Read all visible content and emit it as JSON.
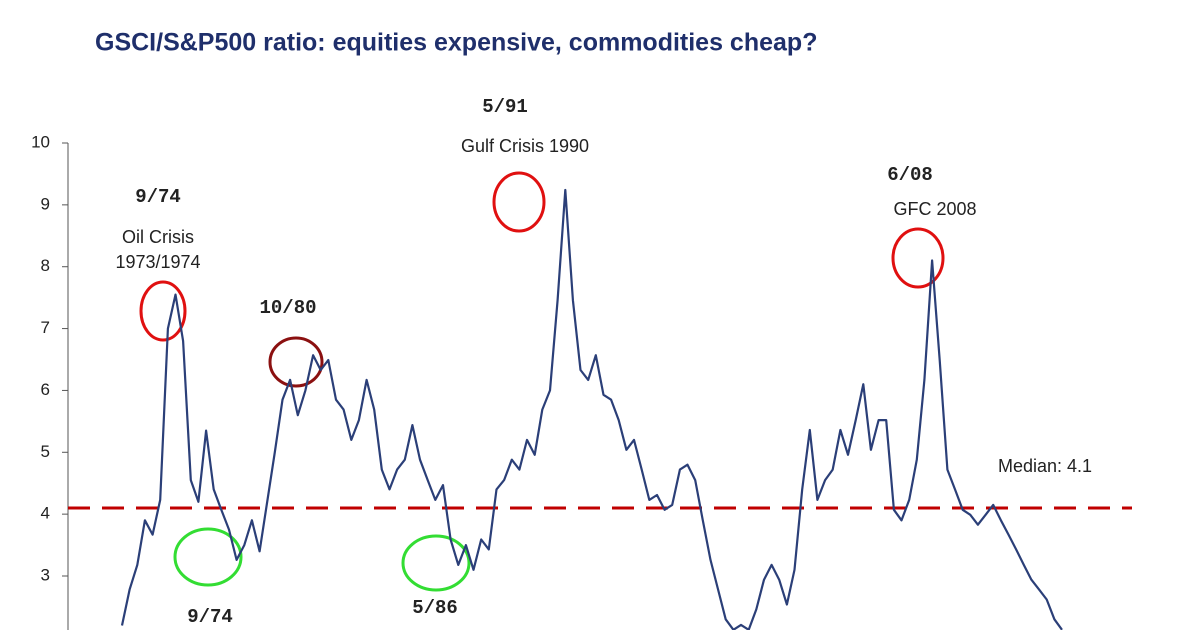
{
  "chart_data": {
    "type": "line",
    "title": "GSCI/S&P500 ratio: equities expensive, commodities cheap?",
    "series": [
      {
        "name": "GSCI/S&P500 ratio",
        "color": "#2b3f78",
        "values": [
          2.2,
          2.78,
          3.18,
          3.9,
          3.67,
          4.23,
          7.0,
          7.55,
          6.8,
          4.55,
          4.2,
          5.35,
          4.4,
          4.07,
          3.75,
          3.26,
          3.5,
          3.9,
          3.4,
          4.2,
          5.0,
          5.85,
          6.17,
          5.6,
          6.0,
          6.57,
          6.33,
          6.49,
          5.85,
          5.69,
          5.2,
          5.52,
          6.17,
          5.69,
          4.72,
          4.4,
          4.72,
          4.88,
          5.44,
          4.88,
          4.55,
          4.23,
          4.47,
          3.59,
          3.18,
          3.5,
          3.1,
          3.59,
          3.43,
          4.4,
          4.55,
          4.88,
          4.72,
          5.2,
          4.96,
          5.69,
          6.0,
          7.46,
          9.24,
          7.46,
          6.33,
          6.17,
          6.57,
          5.93,
          5.85,
          5.52,
          5.04,
          5.2,
          4.72,
          4.23,
          4.31,
          4.07,
          4.15,
          4.72,
          4.8,
          4.55,
          3.9,
          3.26,
          2.78,
          2.3,
          2.13,
          2.21,
          2.13,
          2.46,
          2.94,
          3.18,
          2.94,
          2.54,
          3.1,
          4.4,
          5.36,
          4.23,
          4.55,
          4.72,
          5.36,
          4.96,
          5.52,
          6.1,
          5.04,
          5.52,
          5.52,
          4.07,
          3.9,
          4.23,
          4.88,
          6.17,
          8.1,
          6.49,
          4.72,
          4.4,
          4.07,
          3.99,
          3.83,
          3.99,
          4.15,
          3.9,
          3.67,
          3.43,
          3.18,
          2.94,
          2.78,
          2.62,
          2.3,
          2.13
        ]
      }
    ],
    "median": {
      "value": 4.1,
      "label": "Median: 4.1",
      "color": "#c00000"
    },
    "annotations": [
      "9/74",
      "Oil Crisis",
      "1973/1974",
      "10/80",
      "5/91",
      "Gulf Crisis 1990",
      "6/08",
      "GFC 2008",
      "9/74",
      "5/86"
    ],
    "ylim": [
      2.1,
      10
    ],
    "yticks": [
      3,
      4,
      5,
      6,
      7,
      8,
      9,
      10
    ]
  }
}
